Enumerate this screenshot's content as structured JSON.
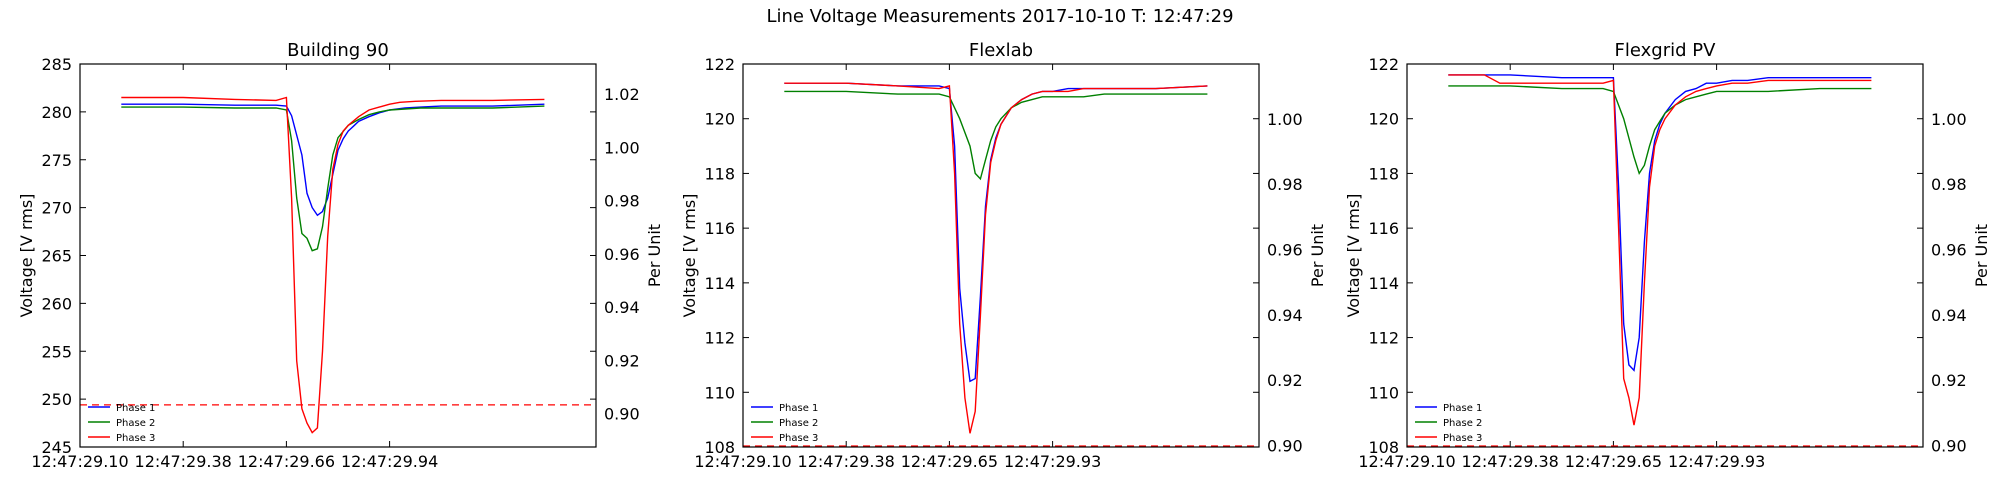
{
  "figure": {
    "suptitle": "Line Voltage Measurements 2017-10-10 T: 12:47:29"
  },
  "colors": {
    "phase1": "#0000ff",
    "phase2": "#008000",
    "phase3": "#ff0000",
    "threshold": "#ff0000"
  },
  "chart_data": [
    {
      "type": "line",
      "title": "Building 90",
      "ylabel": "Voltage [V rms]",
      "ylabel_right": "Per Unit",
      "xlim": [
        0,
        100
      ],
      "ylim": [
        245,
        285
      ],
      "ylim_right": [
        0.8875,
        1.03125
      ],
      "yticks": [
        245,
        250,
        255,
        260,
        265,
        270,
        275,
        280,
        285
      ],
      "yticks_right": [
        0.9,
        0.92,
        0.94,
        0.96,
        0.98,
        1.0,
        1.02
      ],
      "xtick_labels": [
        "12:47:29.10",
        "12:47:29.38",
        "12:47:29.66",
        "12:47:29.94"
      ],
      "threshold": {
        "value": 249.4,
        "style": "dashed"
      },
      "legend_position": "lower left",
      "grid": false,
      "series": [
        {
          "name": "Phase 1",
          "color": "#0000ff",
          "x": [
            8,
            20,
            30,
            38,
            40,
            41,
            43,
            44,
            45,
            46,
            47,
            48,
            50,
            51,
            52,
            53,
            54,
            56,
            58,
            60,
            63,
            66,
            70,
            80,
            90
          ],
          "y": [
            280.8,
            280.8,
            280.7,
            280.7,
            280.6,
            279.6,
            275.5,
            271.5,
            270.0,
            269.2,
            269.6,
            271.0,
            276.0,
            277.2,
            278.0,
            278.5,
            279.0,
            279.5,
            279.9,
            280.2,
            280.4,
            280.5,
            280.6,
            280.6,
            280.8
          ]
        },
        {
          "name": "Phase 2",
          "color": "#008000",
          "x": [
            8,
            20,
            30,
            38,
            40,
            41,
            42,
            43,
            44,
            45,
            46,
            47,
            48,
            49,
            50,
            52,
            54,
            56,
            58,
            60,
            63,
            66,
            70,
            80,
            90
          ],
          "y": [
            280.5,
            280.5,
            280.4,
            280.4,
            280.2,
            277.0,
            271.0,
            267.3,
            266.8,
            265.5,
            265.7,
            268.0,
            272.0,
            275.5,
            277.3,
            278.6,
            279.2,
            279.7,
            280.0,
            280.2,
            280.3,
            280.4,
            280.4,
            280.4,
            280.6
          ]
        },
        {
          "name": "Phase 3",
          "color": "#ff0000",
          "x": [
            8,
            20,
            30,
            38,
            40,
            41,
            42,
            43,
            44,
            45,
            46,
            47,
            48,
            49,
            50,
            51,
            52,
            54,
            56,
            58,
            60,
            62,
            65,
            70,
            80,
            90
          ],
          "y": [
            281.5,
            281.5,
            281.3,
            281.2,
            281.5,
            271.0,
            254.0,
            249.0,
            247.5,
            246.5,
            247.0,
            255.0,
            267.0,
            274.0,
            276.6,
            278.0,
            278.6,
            279.5,
            280.2,
            280.5,
            280.8,
            281.0,
            281.1,
            281.2,
            281.2,
            281.3
          ]
        }
      ]
    },
    {
      "type": "line",
      "title": "Flexlab",
      "ylabel": "Voltage [V rms]",
      "ylabel_right": "Per Unit",
      "xlim": [
        0,
        100
      ],
      "ylim": [
        108,
        122
      ],
      "ylim_right": [
        0.8995,
        1.0168
      ],
      "yticks": [
        108,
        110,
        112,
        114,
        116,
        118,
        120,
        122
      ],
      "yticks_right": [
        0.9,
        0.92,
        0.94,
        0.96,
        0.98,
        1.0
      ],
      "xtick_labels": [
        "12:47:29.10",
        "12:47:29.38",
        "12:47:29.65",
        "12:47:29.93"
      ],
      "threshold": {
        "value": 108.0,
        "style": "dashed"
      },
      "legend_position": "lower left",
      "grid": false,
      "series": [
        {
          "name": "Phase 1",
          "color": "#0000ff",
          "x": [
            8,
            20,
            30,
            38,
            40,
            41,
            42,
            43,
            44,
            45,
            46,
            47,
            48,
            49,
            50,
            52,
            54,
            56,
            58,
            60,
            63,
            66,
            70,
            80,
            90
          ],
          "y": [
            121.3,
            121.3,
            121.2,
            121.2,
            121.1,
            119.0,
            113.8,
            111.8,
            110.4,
            110.5,
            113.5,
            116.8,
            118.5,
            119.3,
            119.8,
            120.4,
            120.7,
            120.9,
            121.0,
            121.0,
            121.1,
            121.1,
            121.1,
            121.1,
            121.2
          ]
        },
        {
          "name": "Phase 2",
          "color": "#008000",
          "x": [
            8,
            20,
            30,
            38,
            40,
            42,
            44,
            45,
            46,
            47,
            48,
            49,
            50,
            52,
            54,
            56,
            58,
            60,
            63,
            66,
            70,
            80,
            90
          ],
          "y": [
            121.0,
            121.0,
            120.9,
            120.9,
            120.8,
            120.0,
            119.0,
            118.0,
            117.8,
            118.5,
            119.2,
            119.7,
            120.0,
            120.4,
            120.6,
            120.7,
            120.8,
            120.8,
            120.8,
            120.8,
            120.9,
            120.9,
            120.9
          ]
        },
        {
          "name": "Phase 3",
          "color": "#ff0000",
          "x": [
            8,
            20,
            30,
            38,
            40,
            41,
            42,
            43,
            44,
            45,
            46,
            47,
            48,
            49,
            50,
            52,
            54,
            56,
            58,
            60,
            63,
            66,
            70,
            80,
            90
          ],
          "y": [
            121.3,
            121.3,
            121.2,
            121.1,
            121.2,
            118.0,
            112.5,
            109.8,
            108.5,
            109.3,
            112.8,
            116.5,
            118.4,
            119.2,
            119.8,
            120.4,
            120.7,
            120.9,
            121.0,
            121.0,
            121.0,
            121.1,
            121.1,
            121.1,
            121.2
          ]
        }
      ]
    },
    {
      "type": "line",
      "title": "Flexgrid PV",
      "ylabel": "Voltage [V rms]",
      "ylabel_right": "Per Unit",
      "xlim": [
        0,
        100
      ],
      "ylim": [
        108,
        122
      ],
      "ylim_right": [
        0.8995,
        1.0168
      ],
      "yticks": [
        108,
        110,
        112,
        114,
        116,
        118,
        120,
        122
      ],
      "yticks_right": [
        0.9,
        0.92,
        0.94,
        0.96,
        0.98,
        1.0
      ],
      "xtick_labels": [
        "12:47:29.10",
        "12:47:29.38",
        "12:47:29.65",
        "12:47:29.93"
      ],
      "threshold": {
        "value": 108.0,
        "style": "dashed"
      },
      "legend_position": "lower left",
      "grid": false,
      "series": [
        {
          "name": "Phase 1",
          "color": "#0000ff",
          "x": [
            8,
            20,
            30,
            38,
            40,
            41,
            42,
            43,
            44,
            45,
            46,
            47,
            48,
            49,
            50,
            52,
            54,
            56,
            58,
            60,
            63,
            66,
            70,
            80,
            90
          ],
          "y": [
            121.6,
            121.6,
            121.5,
            121.5,
            121.5,
            117.5,
            112.5,
            111.0,
            110.8,
            112.0,
            115.5,
            118.0,
            119.2,
            119.8,
            120.2,
            120.7,
            121.0,
            121.1,
            121.3,
            121.3,
            121.4,
            121.4,
            121.5,
            121.5,
            121.5
          ]
        },
        {
          "name": "Phase 2",
          "color": "#008000",
          "x": [
            8,
            20,
            30,
            38,
            40,
            42,
            44,
            45,
            46,
            47,
            48,
            49,
            50,
            52,
            54,
            56,
            58,
            60,
            63,
            66,
            70,
            80,
            90
          ],
          "y": [
            121.2,
            121.2,
            121.1,
            121.1,
            121.0,
            120.0,
            118.6,
            118.0,
            118.3,
            119.0,
            119.6,
            119.9,
            120.2,
            120.5,
            120.7,
            120.8,
            120.9,
            121.0,
            121.0,
            121.0,
            121.0,
            121.1,
            121.1
          ]
        },
        {
          "name": "Phase 3",
          "color": "#ff0000",
          "x": [
            8,
            15,
            18,
            20,
            30,
            38,
            40,
            41,
            42,
            43,
            44,
            45,
            46,
            47,
            48,
            49,
            50,
            52,
            54,
            56,
            58,
            60,
            63,
            66,
            70,
            80,
            90
          ],
          "y": [
            121.6,
            121.6,
            121.3,
            121.3,
            121.3,
            121.3,
            121.4,
            116.0,
            110.5,
            109.8,
            108.8,
            109.8,
            114.0,
            117.5,
            119.0,
            119.6,
            120.0,
            120.5,
            120.8,
            121.0,
            121.1,
            121.2,
            121.3,
            121.3,
            121.4,
            121.4,
            121.4
          ]
        }
      ]
    }
  ]
}
